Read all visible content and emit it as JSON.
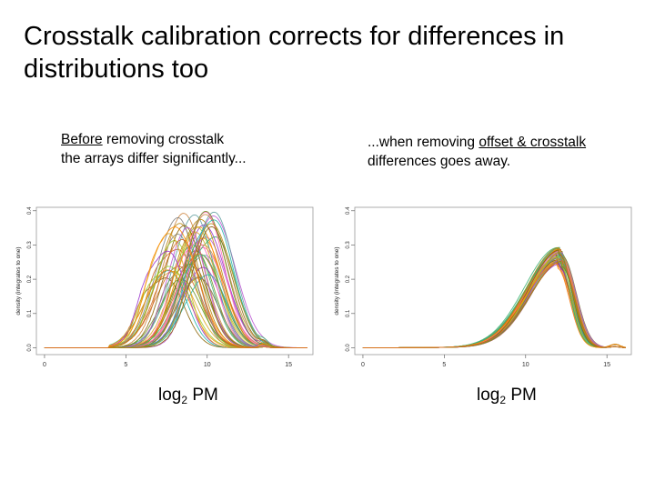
{
  "title": "Crosstalk calibration corrects for differences in distributions too",
  "captions": {
    "left": {
      "underlined": "Before",
      "rest_line1": " removing crosstalk",
      "line2": "the arrays differ significantly..."
    },
    "right": {
      "prefix": "...when removing ",
      "underlined": "offset & crosstalk",
      "line2": "differences goes away."
    }
  },
  "bottom_labels": {
    "left": {
      "base": "log",
      "sub": "2",
      "suffix": " PM"
    },
    "right": {
      "base": "log",
      "sub": "2",
      "suffix": " PM"
    }
  },
  "chart_data": [
    {
      "type": "line",
      "ylabel": "density (integrates to one)",
      "x_ticks": [
        0,
        5,
        10,
        15
      ],
      "y_ticks": [
        "0.0",
        "0.1",
        "0.2",
        "0.3",
        "0.4"
      ],
      "xlim": [
        -0.5,
        16.5
      ],
      "ylim": [
        -0.02,
        0.41
      ],
      "grid": false,
      "series_shape": {
        "description": "about 50 density curves, one per array, peaks spread between 7.5 and 10.5",
        "peak_x_range": [
          7.4,
          10.6
        ],
        "peak_y_range": [
          0.2,
          0.4
        ],
        "support_start": 4.0,
        "secondary_bump_x": 13.5
      }
    },
    {
      "type": "line",
      "ylabel": "density (integrates to one)",
      "x_ticks": [
        0,
        5,
        10,
        15
      ],
      "y_ticks": [
        "0.0",
        "0.1",
        "0.2",
        "0.3",
        "0.4"
      ],
      "xlim": [
        -0.5,
        16.5
      ],
      "ylim": [
        -0.02,
        0.41
      ],
      "grid": false,
      "series_shape": {
        "description": "about 50 density curves overlapping tightly after calibration",
        "peak_x_range": [
          11.9,
          12.3
        ],
        "peak_y_range": [
          0.23,
          0.28
        ],
        "support_start": 0,
        "secondary_bump_x": 15.5
      }
    }
  ],
  "palette": [
    "#8b6508",
    "#6b8e23",
    "#b8860b",
    "#ff8c00",
    "#d2691e",
    "#ba55d3",
    "#9932cc",
    "#808080",
    "#5f9ea0",
    "#3cb371",
    "#9acd32",
    "#cd853f",
    "#daa520",
    "#ff69b4",
    "#20b2aa"
  ]
}
